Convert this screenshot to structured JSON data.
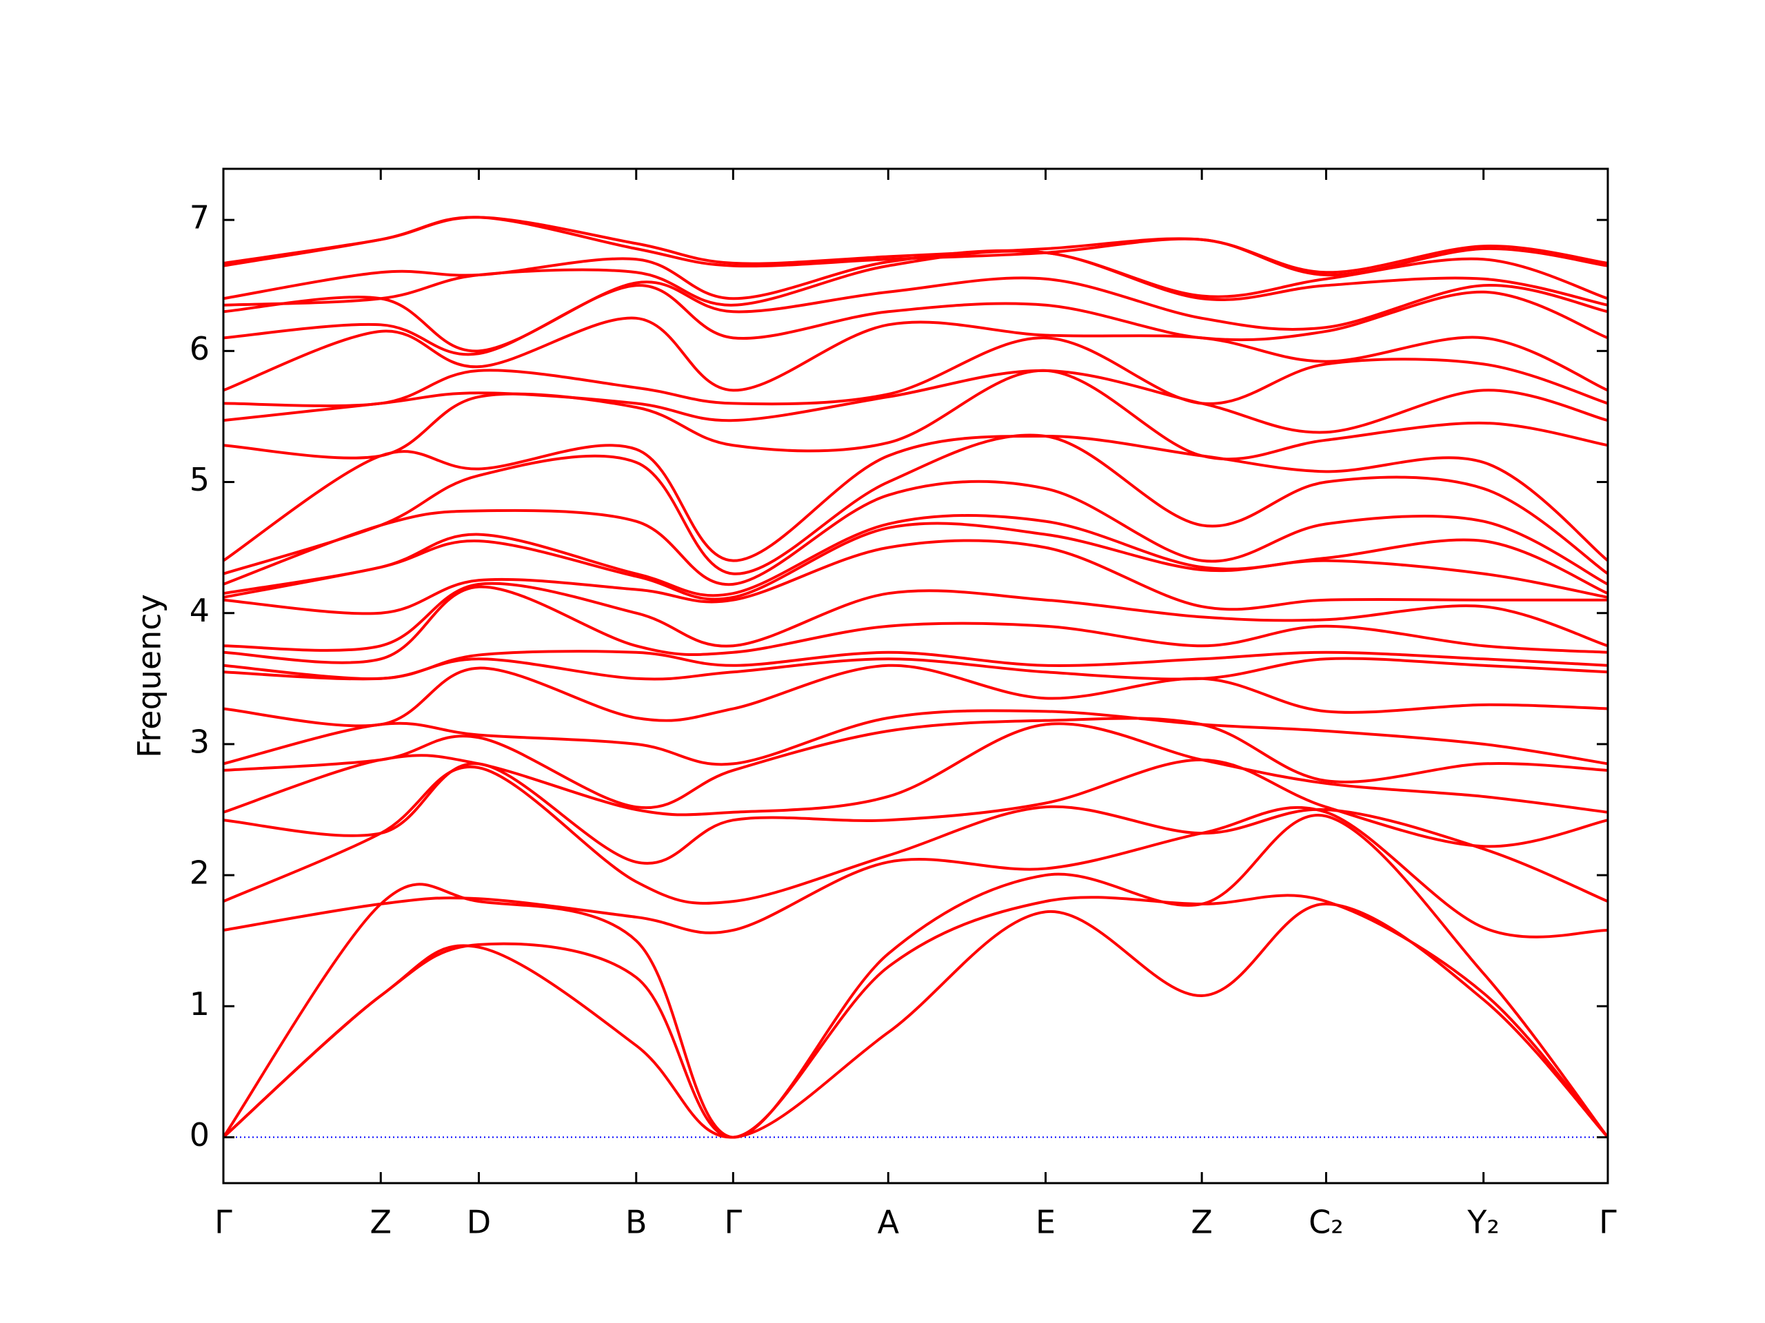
{
  "chart_data": {
    "type": "line",
    "ylabel": "Frequency",
    "x": [
      0,
      0.138,
      0.224,
      0.362,
      0.447,
      0.583,
      0.721,
      0.858,
      0.967,
      1.105,
      1.214
    ],
    "xlim": [
      0,
      1.214
    ],
    "xticks": [
      {
        "value": 0,
        "label": "Γ"
      },
      {
        "value": 0.138,
        "label": "Z"
      },
      {
        "value": 0.224,
        "label": "D"
      },
      {
        "value": 0.362,
        "label": "B"
      },
      {
        "value": 0.447,
        "label": "Γ"
      },
      {
        "value": 0.583,
        "label": "A"
      },
      {
        "value": 0.721,
        "label": "E"
      },
      {
        "value": 0.858,
        "label": "Z"
      },
      {
        "value": 0.967,
        "label": "C₂"
      },
      {
        "value": 1.105,
        "label": "Y₂"
      },
      {
        "value": 1.214,
        "label": "Γ"
      }
    ],
    "ylim": [
      -0.35,
      7.39
    ],
    "yticks": [
      0,
      1,
      2,
      3,
      4,
      5,
      6,
      7
    ],
    "color": "#ff0000",
    "zero_line": {
      "y": 0,
      "color": "#0000ff",
      "style": "dotted"
    },
    "points": [
      [
        0,
        0,
        0,
        1.58,
        1.8,
        2.42,
        2.48,
        2.8,
        2.85,
        3.27,
        3.55,
        3.6,
        3.7,
        3.75,
        4.1,
        4.12,
        4.15,
        4.22,
        4.3,
        4.4,
        5.28,
        5.47,
        5.6,
        5.7,
        6.1,
        6.3,
        6.35,
        6.4,
        6.65,
        6.67
      ],
      [
        1.08,
        1.08,
        1.78,
        1.78,
        2.32,
        2.32,
        2.88,
        2.88,
        3.15,
        3.15,
        3.5,
        3.5,
        3.65,
        3.75,
        4.0,
        4.35,
        4.35,
        4.67,
        4.67,
        5.2,
        5.2,
        5.6,
        5.6,
        6.15,
        6.2,
        6.4,
        6.4,
        6.6,
        6.85,
        6.85
      ],
      [
        1.45,
        1.47,
        1.8,
        1.82,
        2.82,
        2.85,
        2.85,
        3.05,
        3.07,
        3.58,
        3.65,
        3.68,
        4.2,
        4.22,
        4.25,
        4.55,
        4.6,
        4.78,
        5.05,
        5.1,
        5.65,
        5.68,
        5.85,
        5.88,
        5.98,
        6.0,
        6.58,
        6.58,
        7.02,
        7.02
      ],
      [
        0.7,
        1.22,
        1.5,
        1.68,
        1.95,
        2.1,
        2.5,
        2.52,
        3.0,
        3.2,
        3.5,
        3.7,
        3.75,
        4.0,
        4.18,
        4.28,
        4.3,
        4.7,
        5.15,
        5.25,
        5.57,
        5.6,
        5.72,
        6.25,
        6.5,
        6.52,
        6.6,
        6.7,
        6.78,
        6.82
      ],
      [
        0,
        0,
        0,
        1.58,
        1.8,
        2.42,
        2.48,
        2.8,
        2.85,
        3.27,
        3.55,
        3.6,
        3.7,
        3.75,
        4.1,
        4.12,
        4.15,
        4.22,
        4.3,
        4.4,
        5.28,
        5.47,
        5.6,
        5.7,
        6.1,
        6.3,
        6.35,
        6.4,
        6.65,
        6.67
      ],
      [
        0.8,
        1.3,
        1.4,
        2.1,
        2.15,
        2.42,
        2.6,
        3.1,
        3.2,
        3.6,
        3.65,
        3.7,
        3.9,
        4.15,
        4.5,
        4.65,
        4.68,
        4.9,
        5.0,
        5.2,
        5.3,
        5.65,
        5.67,
        6.2,
        6.3,
        6.45,
        6.65,
        6.68,
        6.7,
        6.72
      ],
      [
        1.72,
        1.8,
        2.0,
        2.05,
        2.52,
        2.55,
        3.15,
        3.18,
        3.25,
        3.35,
        3.55,
        3.6,
        3.9,
        4.1,
        4.5,
        4.6,
        4.7,
        4.95,
        5.35,
        5.35,
        5.85,
        5.85,
        6.1,
        6.12,
        6.35,
        6.55,
        6.75,
        6.75,
        6.75,
        6.78
      ],
      [
        1.08,
        1.78,
        1.78,
        2.32,
        2.32,
        2.88,
        2.88,
        3.15,
        3.15,
        3.5,
        3.5,
        3.65,
        3.75,
        3.97,
        4.05,
        4.33,
        4.35,
        4.4,
        4.67,
        5.2,
        5.2,
        5.6,
        5.6,
        6.1,
        6.1,
        6.25,
        6.4,
        6.42,
        6.85,
        6.85
      ],
      [
        1.78,
        1.8,
        2.45,
        2.48,
        2.5,
        2.52,
        2.7,
        2.72,
        3.1,
        3.25,
        3.65,
        3.7,
        3.9,
        3.95,
        4.1,
        4.4,
        4.42,
        4.68,
        5.0,
        5.08,
        5.32,
        5.38,
        5.9,
        5.92,
        6.15,
        6.18,
        6.5,
        6.55,
        6.58,
        6.6
      ],
      [
        1.05,
        1.1,
        1.25,
        1.6,
        2.2,
        2.22,
        2.6,
        2.85,
        3.0,
        3.3,
        3.6,
        3.65,
        3.75,
        4.05,
        4.1,
        4.3,
        4.55,
        4.7,
        4.95,
        5.15,
        5.45,
        5.7,
        5.9,
        6.1,
        6.45,
        6.5,
        6.55,
        6.7,
        6.78,
        6.8
      ],
      [
        0,
        0,
        0,
        1.58,
        1.8,
        2.42,
        2.48,
        2.8,
        2.85,
        3.27,
        3.55,
        3.6,
        3.7,
        3.75,
        4.1,
        4.12,
        4.15,
        4.22,
        4.3,
        4.4,
        5.28,
        5.47,
        5.6,
        5.7,
        6.1,
        6.3,
        6.35,
        6.4,
        6.65,
        6.67
      ]
    ]
  }
}
